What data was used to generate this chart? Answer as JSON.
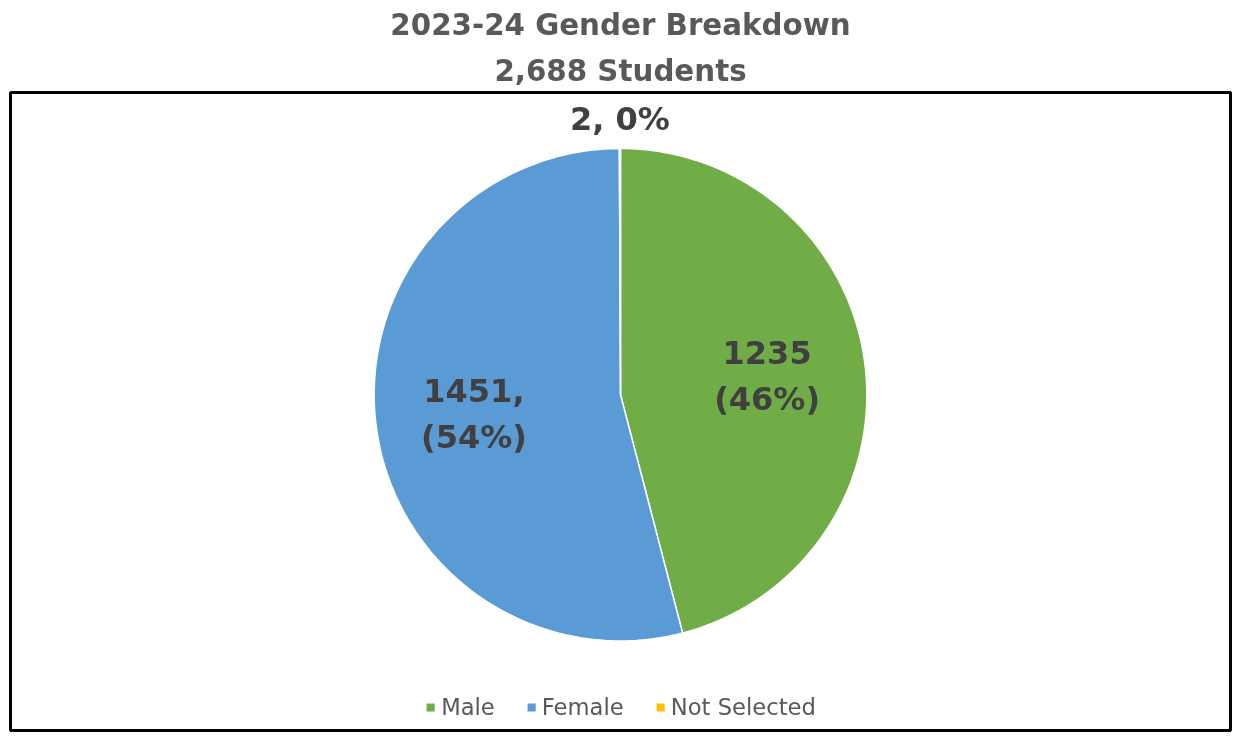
{
  "chart_data": {
    "type": "pie",
    "title": "2023-24 Gender Breakdown",
    "subtitle": "2,688 Students",
    "categories": [
      "Male",
      "Female",
      "Not Selected"
    ],
    "values": [
      1235,
      1451,
      2
    ],
    "colors": [
      "#70ad47",
      "#5b9bd5",
      "#ffc000"
    ],
    "value_labels": [
      "1235\n(46%)",
      "1451,\n(54%)",
      "2, 0%"
    ],
    "legend": "bottom"
  }
}
